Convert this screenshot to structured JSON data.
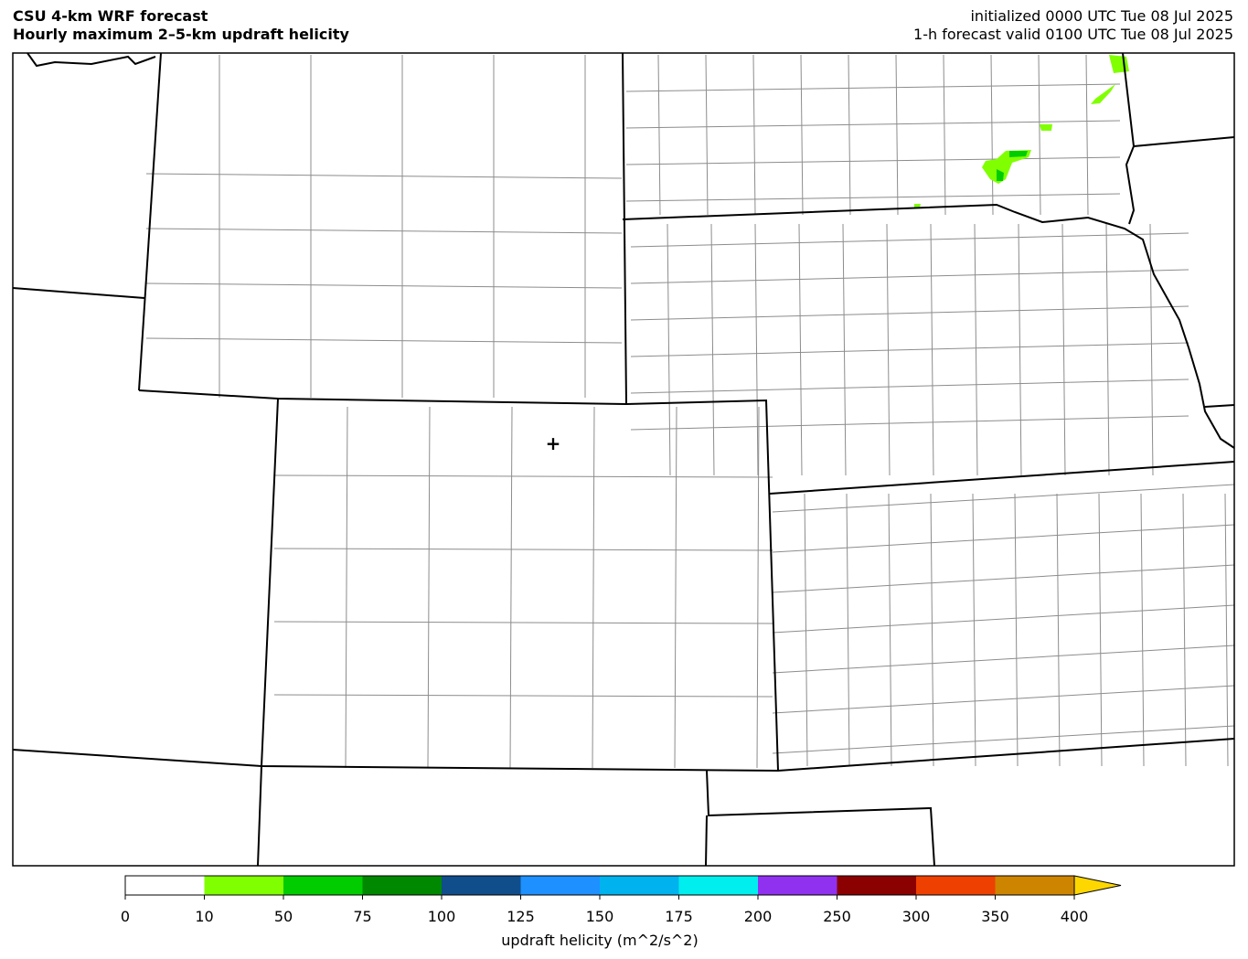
{
  "header": {
    "title_line1": "CSU 4-km WRF forecast",
    "title_line2": "Hourly maximum 2–5-km updraft helicity",
    "init_text": "initialized 0000 UTC Tue 08 Jul 2025",
    "valid_text": "1-h forecast valid 0100 UTC Tue 08 Jul 2025"
  },
  "map": {
    "marker": "plus-icon",
    "border_color": "#000000",
    "county_color": "#8c8c8c"
  },
  "colorbar": {
    "label": "updraft helicity (m^2/s^2)",
    "levels": [
      "0",
      "10",
      "50",
      "75",
      "100",
      "125",
      "150",
      "175",
      "200",
      "250",
      "300",
      "350",
      "400"
    ],
    "colors": [
      "#ffffff",
      "#80ff00",
      "#00cc00",
      "#008800",
      "#104e8b",
      "#1e90ff",
      "#00b2ee",
      "#00eeee",
      "#9131f0",
      "#8b0000",
      "#ee4000",
      "#cd8500"
    ],
    "extend_color": "#ffd700"
  }
}
